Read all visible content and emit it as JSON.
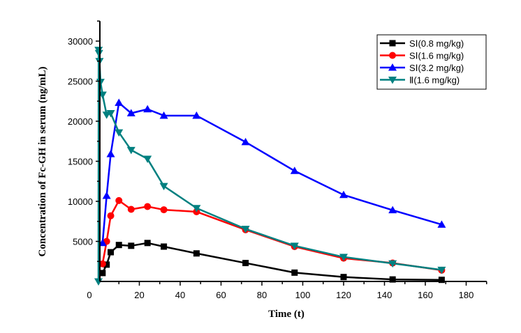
{
  "chart_data": {
    "type": "line",
    "title": "",
    "xlabel": "Time (t)",
    "ylabel": "Concentration of Fc-GH in serum (ng/mL)",
    "xlim": [
      0,
      190
    ],
    "ylim": [
      0,
      32500
    ],
    "x_ticks": [
      0,
      20,
      40,
      60,
      80,
      100,
      120,
      140,
      160,
      180
    ],
    "x_minor_ticks": [
      10,
      30,
      50,
      70,
      90,
      110,
      130,
      150,
      170,
      190
    ],
    "y_ticks": [
      5000,
      10000,
      15000,
      20000,
      25000,
      30000
    ],
    "y_tick_labels": [
      "5000",
      "10000",
      "15000",
      "20000",
      "25000",
      "30000"
    ],
    "y_minor_ticks": [
      2500,
      7500,
      12500,
      17500,
      22500,
      27500,
      32500
    ],
    "x_origin_label": "0",
    "grid": false,
    "legend_position": "top-right",
    "series": [
      {
        "name": "SⅠ(0.8 mg/kg)",
        "color": "#000000",
        "marker": "square",
        "x": [
          2,
          4,
          6,
          10,
          16,
          24,
          32,
          48,
          72,
          96,
          120,
          144,
          168
        ],
        "values": [
          1050,
          2100,
          3650,
          4550,
          4450,
          4800,
          4350,
          3500,
          2300,
          1100,
          550,
          250,
          200
        ]
      },
      {
        "name": "SⅠ(1.6 mg/kg)",
        "color": "#ff0000",
        "marker": "circle",
        "x": [
          2,
          4,
          6,
          10,
          16,
          24,
          32,
          48,
          72,
          96,
          120,
          144,
          168
        ],
        "values": [
          2200,
          5000,
          8200,
          10100,
          9000,
          9350,
          8950,
          8700,
          6450,
          4350,
          2900,
          2300,
          1400
        ]
      },
      {
        "name": "SⅠ(3.2 mg/kg)",
        "color": "#0000ff",
        "marker": "triangle-up",
        "x": [
          2,
          4,
          6,
          10,
          16,
          24,
          32,
          48,
          72,
          96,
          120,
          144,
          168
        ],
        "values": [
          4800,
          10700,
          15900,
          22300,
          21000,
          21500,
          20700,
          20700,
          17400,
          13800,
          10800,
          8900,
          7100
        ]
      },
      {
        "name": "Ⅱ(1.6 mg/kg)",
        "color": "#008080",
        "marker": "triangle-down",
        "x": [
          0,
          0.08,
          0.25,
          0.5,
          1,
          2,
          4,
          6,
          10,
          16,
          24,
          32,
          48,
          72,
          96,
          120,
          144,
          168
        ],
        "values": [
          0,
          28900,
          28500,
          27500,
          24900,
          23300,
          20800,
          21000,
          18600,
          16400,
          15300,
          11900,
          9150,
          6550,
          4450,
          3050,
          2250,
          1450
        ]
      }
    ]
  }
}
